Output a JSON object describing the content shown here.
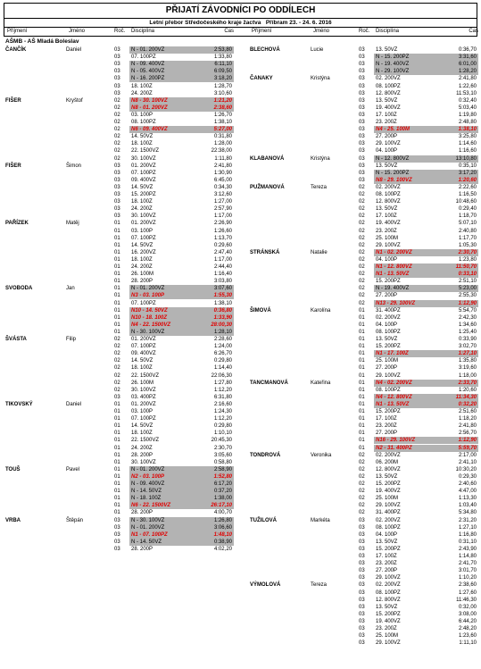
{
  "header": {
    "title": "PŘIJATÍ ZÁVODNÍCI PO ODDÍLECH",
    "subtitle": "Letní přebor Středočeského kraje žactva",
    "place_date": "Příbram 23. - 24. 6. 2016"
  },
  "column_headers": [
    "Příjmení",
    "Jméno",
    "Roč.",
    "Disciplína",
    "Čas"
  ],
  "club": "AŠMB - AŠ Mladá Boleslav",
  "columns": [
    {
      "swimmers": [
        {
          "surname": "ČANČÍK",
          "first": "Daniel",
          "entries": [
            [
              "03",
              "N - 01. 200VZ",
              "2:53,80"
            ],
            [
              "03",
              "07. 100PZ",
              "1:33,80"
            ],
            [
              "03",
              "N - 09. 400VZ",
              "6:11,10"
            ],
            [
              "03",
              "N - 05. 400VZ",
              "6:09,50"
            ],
            [
              "03",
              "N - 16. 200PZ",
              "3:18,20"
            ],
            [
              "03",
              "18. 100Z",
              "1:28,70"
            ],
            [
              "03",
              "24. 200Z",
              "3:10,60"
            ]
          ]
        },
        {
          "surname": "FIŠER",
          "first": "Kryštof",
          "entries": [
            [
              "02",
              "N8 - 30. 100VZ",
              "1:21,20"
            ],
            [
              "02",
              "N8 - 01. 200VZ",
              "2:38,60"
            ],
            [
              "02",
              "03. 100P",
              "1:26,70"
            ],
            [
              "02",
              "08. 100PZ",
              "1:38,10"
            ],
            [
              "02",
              "N6 - 09. 400VZ",
              "5:27,00"
            ],
            [
              "02",
              "14. 50VZ",
              "0:31,80"
            ],
            [
              "02",
              "18. 100Z",
              "1:28,00"
            ],
            [
              "02",
              "22. 1500VZ",
              "22:38,00"
            ],
            [
              "02",
              "30. 100VZ",
              "1:11,80"
            ]
          ]
        },
        {
          "surname": "FIŠER",
          "first": "Šimon",
          "entries": [
            [
              "03",
              "01. 200VZ",
              "2:41,80"
            ],
            [
              "03",
              "07. 100PZ",
              "1:30,90"
            ],
            [
              "03",
              "09. 400VZ",
              "6:45,00"
            ],
            [
              "03",
              "14. 50VZ",
              "0:34,30"
            ],
            [
              "03",
              "15. 200PZ",
              "3:12,60"
            ],
            [
              "03",
              "18. 100Z",
              "1:27,00"
            ],
            [
              "03",
              "24. 200Z",
              "2:57,90"
            ],
            [
              "03",
              "30. 100VZ",
              "1:17,00"
            ]
          ]
        },
        {
          "surname": "PAŘÍZEK",
          "first": "Matěj",
          "entries": [
            [
              "01",
              "01. 200VZ",
              "2:26,90"
            ],
            [
              "01",
              "03. 100P",
              "1:26,60"
            ],
            [
              "01",
              "07. 100PZ",
              "1:13,70"
            ],
            [
              "01",
              "14. 50VZ",
              "0:29,60"
            ],
            [
              "01",
              "16. 200VZ",
              "2:47,40"
            ],
            [
              "01",
              "18. 100Z",
              "1:17,00"
            ],
            [
              "01",
              "24. 200Z",
              "2:44,40"
            ],
            [
              "01",
              "26. 100M",
              "1:16,40"
            ],
            [
              "01",
              "28. 200P",
              "3:03,80"
            ]
          ]
        },
        {
          "surname": "SVOBODA",
          "first": "Jan",
          "entries": [
            [
              "01",
              "N - 01. 200VZ",
              "3:07,60"
            ],
            [
              "01",
              "N3 - 03. 100P",
              "1:55,30"
            ],
            [
              "01",
              "07. 100PZ",
              "1:38,10"
            ],
            [
              "01",
              "N10 - 14. 50VZ",
              "0:36,80"
            ],
            [
              "01",
              "N10 - 18. 100Z",
              "1:33,90"
            ],
            [
              "01",
              "N4 - 22. 1500VZ",
              "28:00,30"
            ],
            [
              "01",
              "N - 30. 100VZ",
              "1:28,10"
            ]
          ]
        },
        {
          "surname": "ŠVÁSTA",
          "first": "Filip",
          "entries": [
            [
              "02",
              "01. 200VZ",
              "2:28,60"
            ],
            [
              "02",
              "07. 100PZ",
              "1:24,00"
            ],
            [
              "02",
              "09. 400VZ",
              "6:26,70"
            ],
            [
              "02",
              "14. 50VZ",
              "0:29,80"
            ],
            [
              "02",
              "18. 100Z",
              "1:14,40"
            ],
            [
              "02",
              "22. 1500VZ",
              "22:06,30"
            ],
            [
              "02",
              "26. 100M",
              "1:27,80"
            ],
            [
              "02",
              "30. 100VZ",
              "1:12,20"
            ],
            [
              "03",
              "03. 400PZ",
              "6:31,80"
            ]
          ]
        },
        {
          "surname": "TIKOVSKÝ",
          "first": "Daniel",
          "entries": [
            [
              "01",
              "01. 200VZ",
              "2:16,60"
            ],
            [
              "01",
              "03. 100P",
              "1:24,30"
            ],
            [
              "01",
              "07. 100PZ",
              "1:12,20"
            ],
            [
              "01",
              "14. 50VZ",
              "0:29,80"
            ],
            [
              "01",
              "18. 100Z",
              "1:10,10"
            ],
            [
              "01",
              "22. 1500VZ",
              "20:45,30"
            ],
            [
              "01",
              "24. 200Z",
              "2:30,70"
            ],
            [
              "01",
              "28. 200P",
              "3:05,60"
            ],
            [
              "01",
              "30. 100VZ",
              "0:58,80"
            ]
          ]
        },
        {
          "surname": "TOUŠ",
          "first": "Pavel",
          "entries": [
            [
              "01",
              "N - 01. 200VZ",
              "2:58,90"
            ],
            [
              "01",
              "N2 - 03. 100P",
              "1:52,80"
            ],
            [
              "01",
              "N - 09. 400VZ",
              "6:17,20"
            ],
            [
              "01",
              "N - 14. 50VZ",
              "0:37,20"
            ],
            [
              "01",
              "N - 18. 100Z",
              "1:38,00"
            ],
            [
              "01",
              "N6 - 22. 1500VZ",
              "26:17,10"
            ],
            [
              "01",
              "28. 200P",
              "4:00,70"
            ]
          ]
        },
        {
          "surname": "VRBA",
          "first": "Štěpán",
          "entries": [
            [
              "03",
              "N - 30. 100VZ",
              "1:26,80"
            ],
            [
              "03",
              "N - 01. 200VZ",
              "3:06,60"
            ],
            [
              "03",
              "N1 - 07. 100PZ",
              "1:48,10"
            ],
            [
              "03",
              "N - 14. 50VZ",
              "0:38,90"
            ],
            [
              "03",
              "28. 200P",
              "4:02,20"
            ]
          ]
        }
      ]
    },
    {
      "swimmers": [
        {
          "surname": "BLECHOVÁ",
          "first": "Lucie",
          "entries": [
            [
              "03",
              "13. 50VZ",
              "0:36,70"
            ],
            [
              "03",
              "N - 15. 200PZ",
              "3:31,60"
            ],
            [
              "03",
              "N - 19. 400VZ",
              "6:01,00"
            ],
            [
              "03",
              "N - 29. 100VZ",
              "1:28,20"
            ]
          ]
        },
        {
          "surname": "ČANAKY",
          "first": "Kristýna",
          "entries": [
            [
              "03",
              "02. 200VZ",
              "2:41,80"
            ],
            [
              "03",
              "08. 100PZ",
              "1:22,60"
            ],
            [
              "03",
              "12. 800VZ",
              "11:53,10"
            ],
            [
              "03",
              "13. 50VZ",
              "0:32,40"
            ],
            [
              "03",
              "19. 400VZ",
              "5:03,40"
            ],
            [
              "03",
              "17. 100Z",
              "1:19,80"
            ],
            [
              "03",
              "23. 200Z",
              "2:48,80"
            ],
            [
              "03",
              "N4 - 25. 100M",
              "1:38,10"
            ],
            [
              "03",
              "27. 200P",
              "3:25,80"
            ],
            [
              "03",
              "29. 100VZ",
              "1:14,60"
            ],
            [
              "03",
              "04. 100P",
              "1:16,60"
            ]
          ]
        },
        {
          "surname": "KLABANOVÁ",
          "first": "Kristýna",
          "entries": [
            [
              "03",
              "N - 12. 800VZ",
              "13:10,80"
            ],
            [
              "03",
              "13. 50VZ",
              "0:35,10"
            ],
            [
              "03",
              "N - 15. 200PZ",
              "3:17,20"
            ],
            [
              "03",
              "N8 - 29. 100VZ",
              "1:20,60"
            ]
          ]
        },
        {
          "surname": "PUŽMANOVÁ",
          "first": "Tereza",
          "entries": [
            [
              "02",
              "02. 200VZ",
              "2:22,60"
            ],
            [
              "02",
              "08. 100PZ",
              "1:16,50"
            ],
            [
              "02",
              "12. 800VZ",
              "10:48,60"
            ],
            [
              "02",
              "13. 50VZ",
              "0:29,40"
            ],
            [
              "02",
              "17. 100Z",
              "1:18,70"
            ],
            [
              "02",
              "19. 400VZ",
              "5:07,10"
            ],
            [
              "02",
              "23. 200Z",
              "2:40,80"
            ],
            [
              "02",
              "25. 100M",
              "1:17,70"
            ],
            [
              "02",
              "29. 100VZ",
              "1:05,30"
            ]
          ]
        },
        {
          "surname": "STRÁNSKÁ",
          "first": "Natalie",
          "entries": [
            [
              "02",
              "N1 - 02. 200VZ",
              "2:30,70"
            ],
            [
              "02",
              "04. 100P",
              "1:23,80"
            ],
            [
              "02",
              "N1 - 12. 800VZ",
              "11:50,70"
            ],
            [
              "02",
              "N1 - 13. 50VZ",
              "0:33,10"
            ],
            [
              "02",
              "15. 200PZ",
              "2:51,10"
            ],
            [
              "02",
              "N - 19. 400VZ",
              "5:23,00"
            ],
            [
              "02",
              "27. 200P",
              "2:55,30"
            ],
            [
              "02",
              "N13 - 29. 100VZ",
              "1:12,90"
            ]
          ]
        },
        {
          "surname": "ŠIMOVÁ",
          "first": "Karolína",
          "entries": [
            [
              "01",
              "31. 400PZ",
              "5:54,70"
            ],
            [
              "01",
              "02. 200VZ",
              "2:42,30"
            ],
            [
              "01",
              "04. 100P",
              "1:34,60"
            ],
            [
              "01",
              "08. 100PZ",
              "1:25,40"
            ],
            [
              "01",
              "13. 50VZ",
              "0:33,90"
            ],
            [
              "01",
              "15. 200PZ",
              "3:02,70"
            ],
            [
              "01",
              "N1 - 17. 100Z",
              "1:27,10"
            ],
            [
              "01",
              "25. 100M",
              "1:35,80"
            ],
            [
              "01",
              "27. 200P",
              "3:19,60"
            ],
            [
              "01",
              "29. 100VZ",
              "1:18,00"
            ]
          ]
        },
        {
          "surname": "TANCMANOVÁ",
          "first": "Kateřina",
          "entries": [
            [
              "01",
              "N4 - 02. 200VZ",
              "2:33,70"
            ],
            [
              "01",
              "08. 100PZ",
              "1:20,60"
            ],
            [
              "01",
              "N4 - 12. 800VZ",
              "11:34,30"
            ],
            [
              "01",
              "N1 - 13. 50VZ",
              "0:32,20"
            ],
            [
              "01",
              "15. 200PZ",
              "2:51,60"
            ],
            [
              "01",
              "17. 100Z",
              "1:18,20"
            ],
            [
              "01",
              "23. 200Z",
              "2:41,80"
            ],
            [
              "01",
              "27. 200P",
              "2:56,70"
            ],
            [
              "01",
              "N16 - 29. 100VZ",
              "1:12,90"
            ],
            [
              "01",
              "N2 - 31. 400PZ",
              "5:59,70"
            ]
          ]
        },
        {
          "surname": "TONDROVÁ",
          "first": "Veronika",
          "entries": [
            [
              "02",
              "02. 200VZ",
              "2:17,00"
            ],
            [
              "02",
              "06. 200M",
              "2:41,10"
            ],
            [
              "02",
              "12. 800VZ",
              "10:30,20"
            ],
            [
              "02",
              "13. 50VZ",
              "0:29,30"
            ],
            [
              "02",
              "15. 200PZ",
              "2:40,60"
            ],
            [
              "02",
              "19. 400VZ",
              "4:47,00"
            ],
            [
              "02",
              "25. 100M",
              "1:13,30"
            ],
            [
              "02",
              "29. 100VZ",
              "1:03,40"
            ],
            [
              "02",
              "31. 400PZ",
              "5:34,80"
            ]
          ]
        },
        {
          "surname": "TUŽILOVÁ",
          "first": "Markéta",
          "entries": [
            [
              "03",
              "02. 200VZ",
              "2:31,20"
            ],
            [
              "03",
              "08. 100PZ",
              "1:27,10"
            ],
            [
              "03",
              "04. 100P",
              "1:16,80"
            ],
            [
              "03",
              "13. 50VZ",
              "0:31,10"
            ],
            [
              "03",
              "15. 200PZ",
              "2:43,90"
            ],
            [
              "03",
              "17. 100Z",
              "1:14,80"
            ],
            [
              "03",
              "23. 200Z",
              "2:41,70"
            ],
            [
              "03",
              "27. 200P",
              "3:01,70"
            ],
            [
              "03",
              "29. 100VZ",
              "1:10,20"
            ]
          ]
        },
        {
          "surname": "VÝMOLOVÁ",
          "first": "Tereza",
          "entries": [
            [
              "03",
              "02. 200VZ",
              "2:38,60"
            ],
            [
              "03",
              "08. 100PZ",
              "1:27,60"
            ],
            [
              "03",
              "12. 800VZ",
              "11:46,30"
            ],
            [
              "03",
              "13. 50VZ",
              "0:32,00"
            ],
            [
              "03",
              "15. 200PZ",
              "3:08,00"
            ],
            [
              "03",
              "19. 400VZ",
              "6:44,20"
            ],
            [
              "03",
              "23. 200Z",
              "2:48,20"
            ],
            [
              "03",
              "25. 100M",
              "1:23,60"
            ],
            [
              "03",
              "29. 100VZ",
              "1:11,10"
            ]
          ]
        }
      ]
    }
  ]
}
